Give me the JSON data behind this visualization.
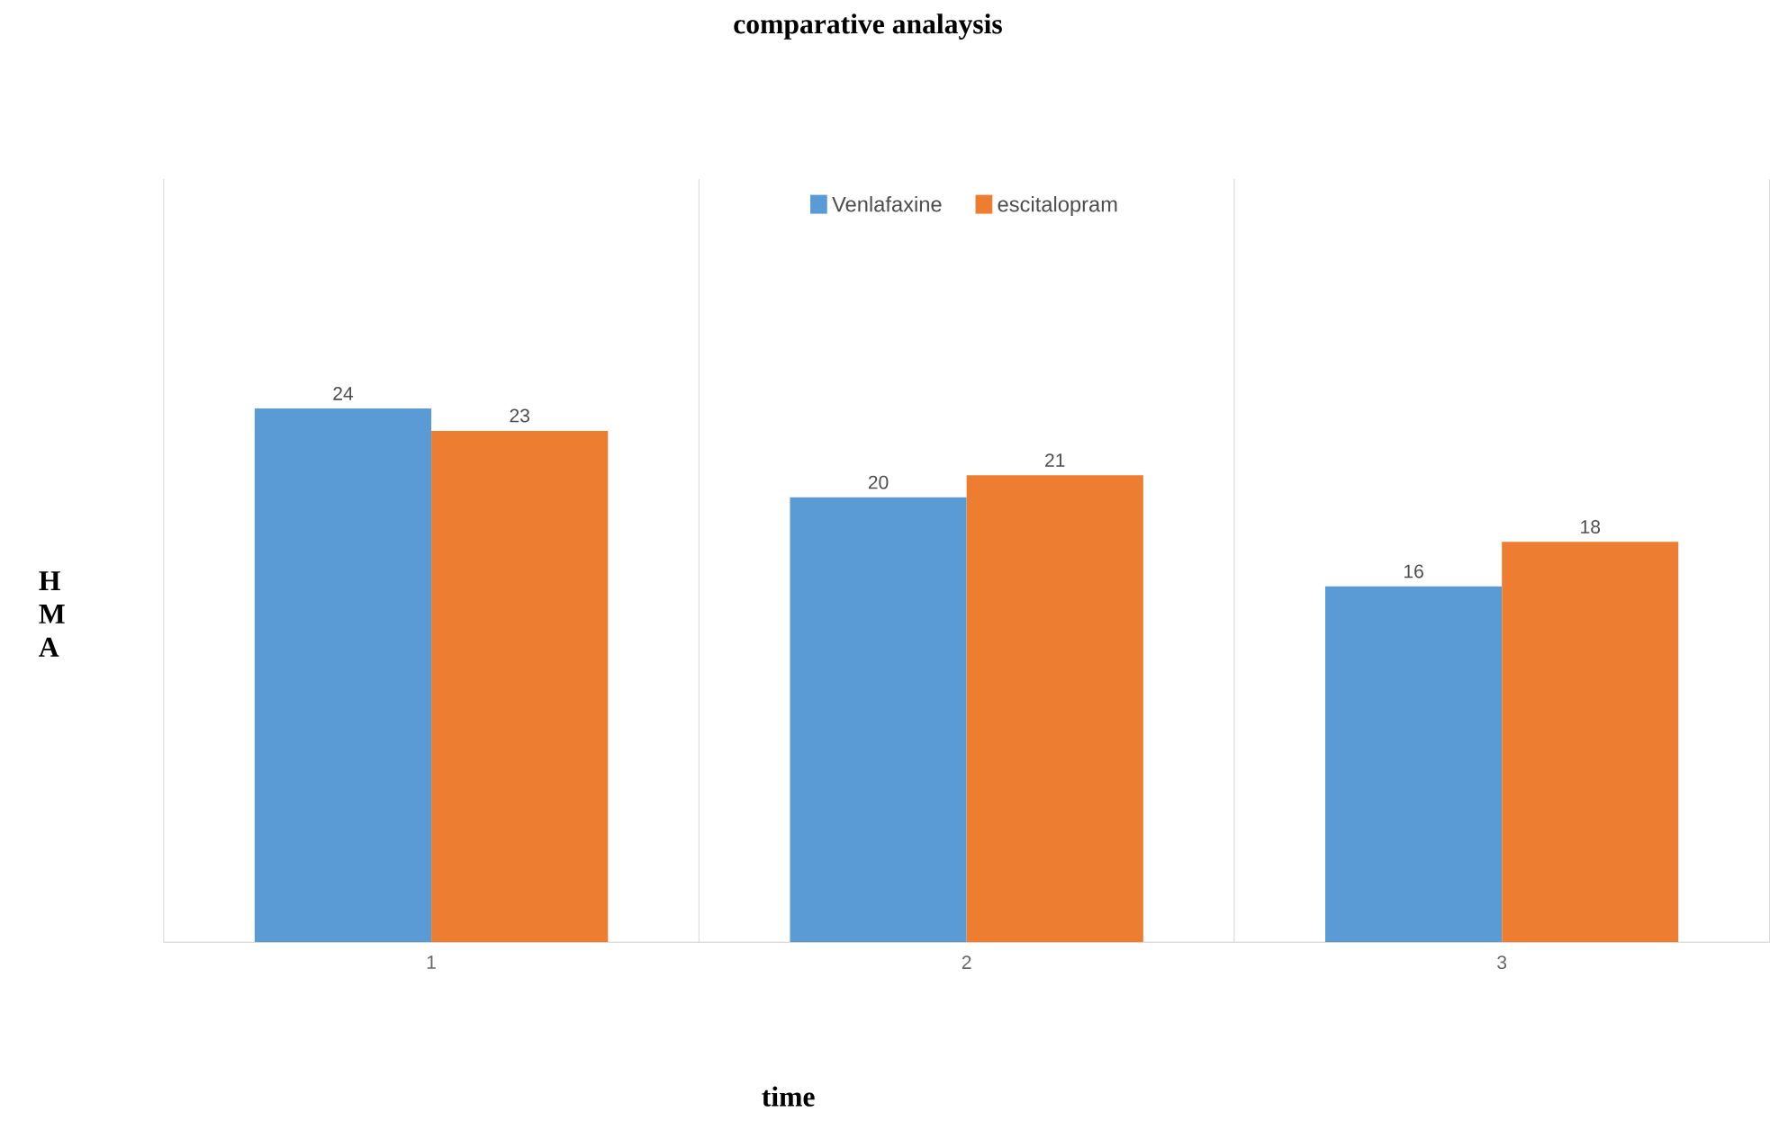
{
  "chart_data": {
    "type": "bar",
    "title": "comparative analaysis",
    "xlabel": "time",
    "ylabel": "H M A",
    "categories": [
      "1",
      "2",
      "3"
    ],
    "series": [
      {
        "name": "Venlafaxine",
        "color": "#5b9bd5",
        "values": [
          24,
          20,
          16
        ]
      },
      {
        "name": "escitalopram",
        "color": "#ed7d31",
        "values": [
          23,
          21,
          18
        ]
      }
    ],
    "data_labels": true,
    "legend": "top",
    "grid": "x"
  }
}
